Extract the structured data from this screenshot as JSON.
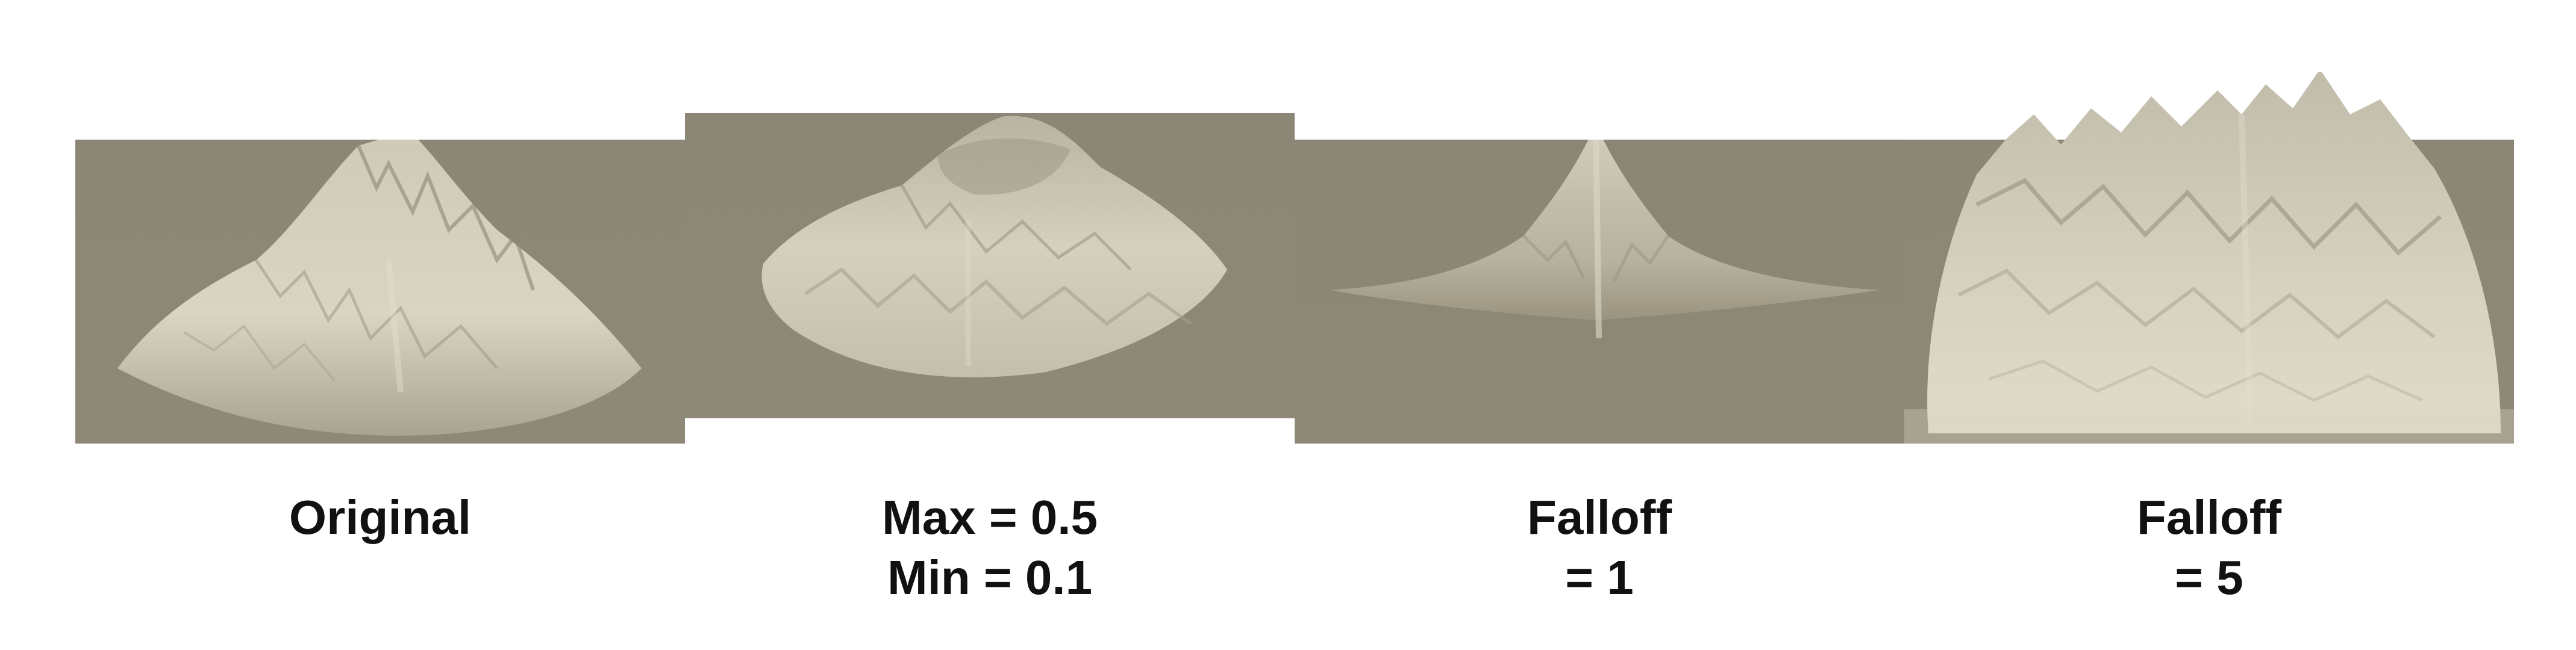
{
  "colors": {
    "background": "#ffffff",
    "terrain_base": "#8a8474",
    "terrain_light": "#d8d4c3",
    "terrain_shadow": "#6e6859",
    "caption_text": "#111111"
  },
  "panels": [
    {
      "name": "original",
      "image": "heightmap-terrain-render",
      "caption_lines": [
        "Original"
      ]
    },
    {
      "name": "max-min",
      "image": "heightmap-terrain-render",
      "caption_lines": [
        "Max = 0.5",
        "Min = 0.1"
      ]
    },
    {
      "name": "falloff-1",
      "image": "heightmap-terrain-render",
      "caption_lines": [
        "Falloff",
        "= 1"
      ]
    },
    {
      "name": "falloff-5",
      "image": "heightmap-terrain-render",
      "caption_lines": [
        "Falloff",
        "= 5"
      ]
    }
  ]
}
